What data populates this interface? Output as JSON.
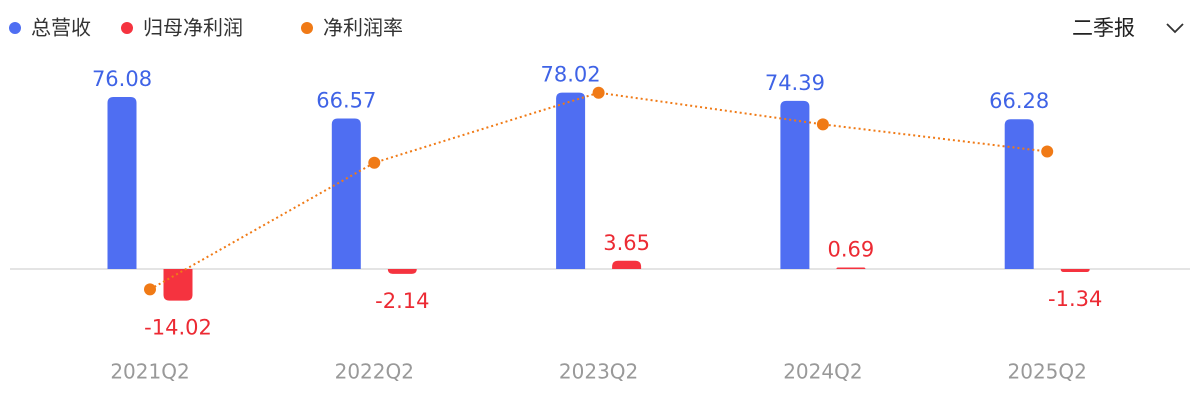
{
  "chart_data": {
    "type": "bar",
    "categories": [
      "2021Q2",
      "2022Q2",
      "2023Q2",
      "2024Q2",
      "2025Q2"
    ],
    "series": [
      {
        "name": "总营收",
        "type": "bar",
        "color": "#4f6ef2",
        "label_color": "#3f63e6",
        "values": [
          76.08,
          66.57,
          78.02,
          74.39,
          66.28
        ]
      },
      {
        "name": "归母净利润",
        "type": "bar",
        "color": "#f5333f",
        "label_color": "#ec2a33",
        "values": [
          -14.02,
          -2.14,
          3.65,
          0.69,
          -1.34
        ]
      },
      {
        "name": "净利润率",
        "type": "line",
        "color": "#f07a16",
        "values": [
          -9,
          47,
          78,
          64,
          52
        ]
      }
    ],
    "ylim": [
      -25,
      90
    ]
  },
  "controls": {
    "period": "二季报"
  }
}
